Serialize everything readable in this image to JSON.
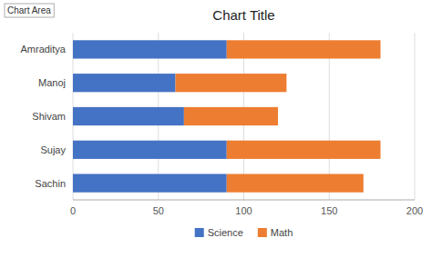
{
  "chart_data": {
    "type": "bar",
    "orientation": "horizontal",
    "stacked": true,
    "title": "Chart Title",
    "annotations": [
      "Chart Area"
    ],
    "categories": [
      "Amraditya",
      "Manoj",
      "Shivam",
      "Sujay",
      "Sachin"
    ],
    "series": [
      {
        "name": "Science",
        "color": "#4472C4",
        "values": [
          90,
          60,
          65,
          90,
          90
        ]
      },
      {
        "name": "Math",
        "color": "#ED7D31",
        "values": [
          90,
          65,
          55,
          90,
          80
        ]
      }
    ],
    "xlim": [
      0,
      200
    ],
    "xticks": [
      0,
      50,
      100,
      150,
      200
    ],
    "grid": true,
    "legend": "bottom"
  }
}
